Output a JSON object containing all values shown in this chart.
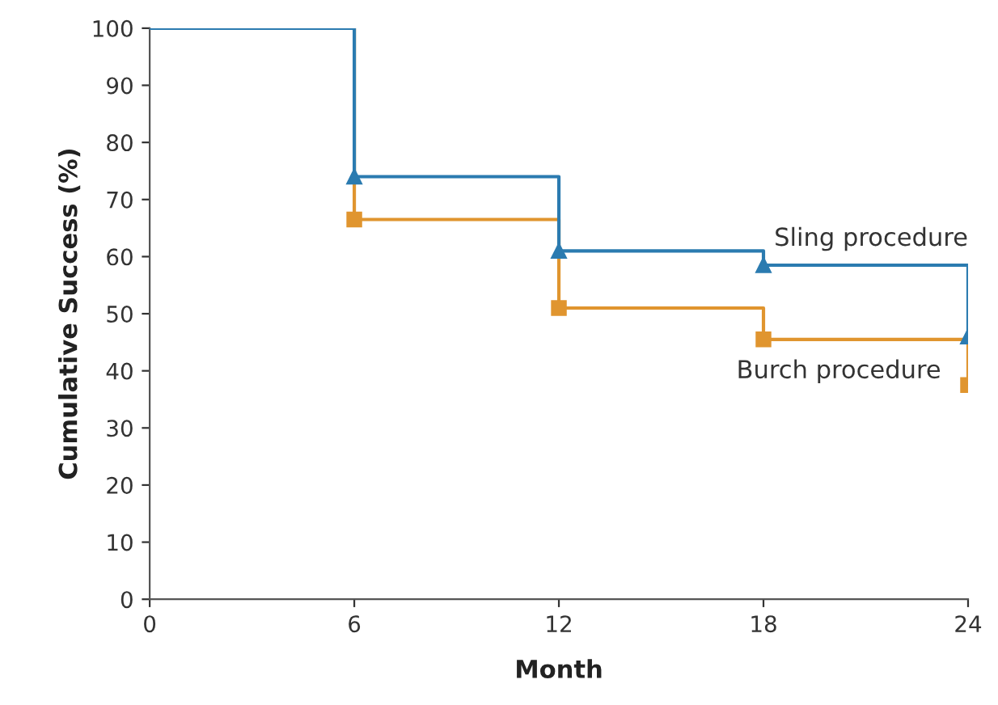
{
  "chart_data": {
    "type": "step",
    "xlabel": "Month",
    "ylabel": "Cumulative Success (%)",
    "x": [
      0,
      6,
      12,
      18,
      24
    ],
    "series": [
      {
        "name": "Burch procedure",
        "color": "#e0952f",
        "marker": "square",
        "values": [
          100,
          66.5,
          51,
          45.5,
          37.5
        ]
      },
      {
        "name": "Sling procedure",
        "color": "#2b7bb0",
        "marker": "triangle",
        "values": [
          100,
          74,
          61,
          58.5,
          46
        ]
      }
    ],
    "xlim": [
      0,
      24
    ],
    "xticks": [
      0,
      6,
      12,
      18,
      24
    ],
    "ylim": [
      0,
      100
    ],
    "yticks": [
      0,
      10,
      20,
      30,
      40,
      50,
      60,
      70,
      80,
      90,
      100
    ],
    "grid": false,
    "legend": false
  }
}
